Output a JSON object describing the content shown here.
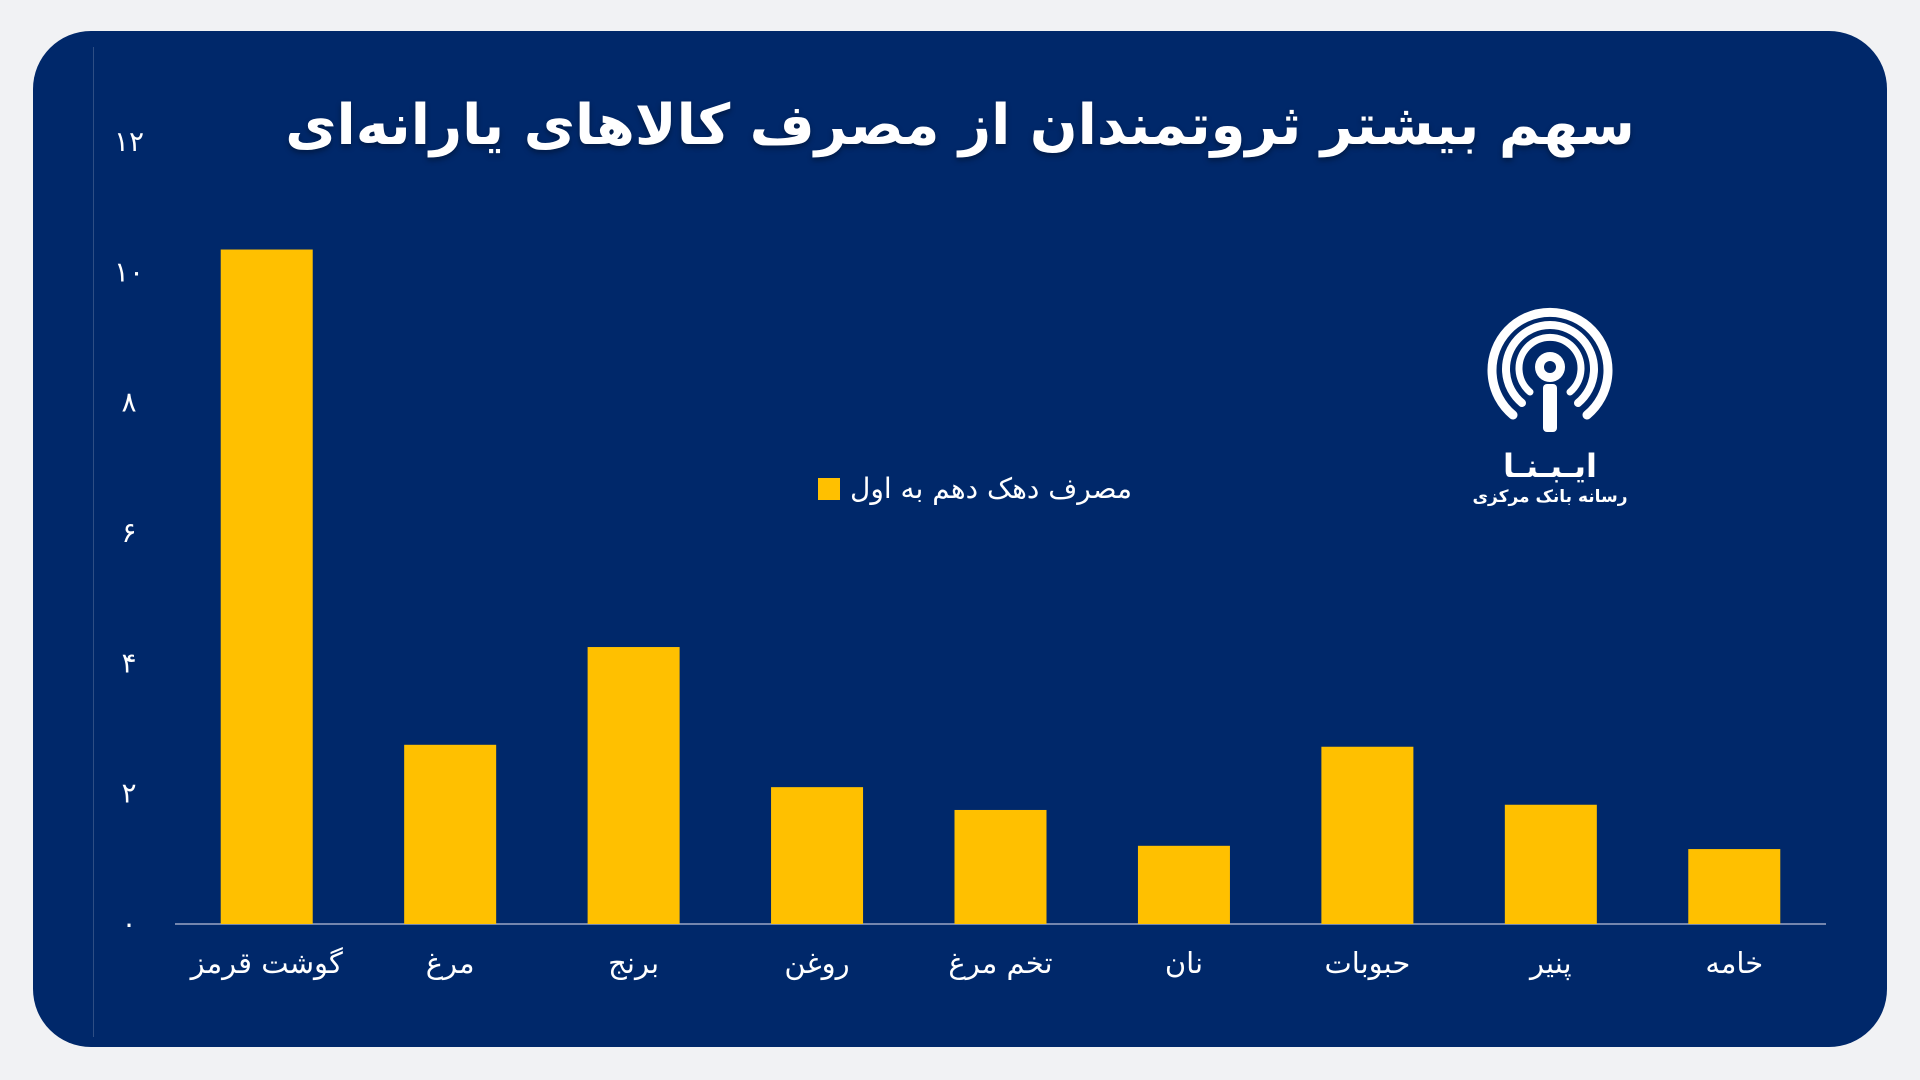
{
  "chart_data": {
    "type": "bar",
    "title": "سهم بیشتر ثروتمندان از مصرف کالاهای یارانه‌ای",
    "categories": [
      "گوشت قرمز",
      "مرغ",
      "برنج",
      "روغن",
      "تخم مرغ",
      "نان",
      "حبوبات",
      "پنیر",
      "خامه"
    ],
    "series": [
      {
        "name": "مصرف دهک دهم به اول",
        "values": [
          10.35,
          2.75,
          4.25,
          2.1,
          1.75,
          1.2,
          2.72,
          1.83,
          1.15
        ]
      }
    ],
    "yticks": [
      "۰",
      "۲",
      "۴",
      "۶",
      "۸",
      "۱۰",
      "۱۲"
    ],
    "ylim": [
      0,
      12
    ],
    "grid": false,
    "legend_position": "center",
    "bar_color": "#ffc000",
    "background_color": "#00286a"
  },
  "logo": {
    "name": "ایـبـنـا",
    "subtitle": "رسانه بانک مرکزی"
  }
}
